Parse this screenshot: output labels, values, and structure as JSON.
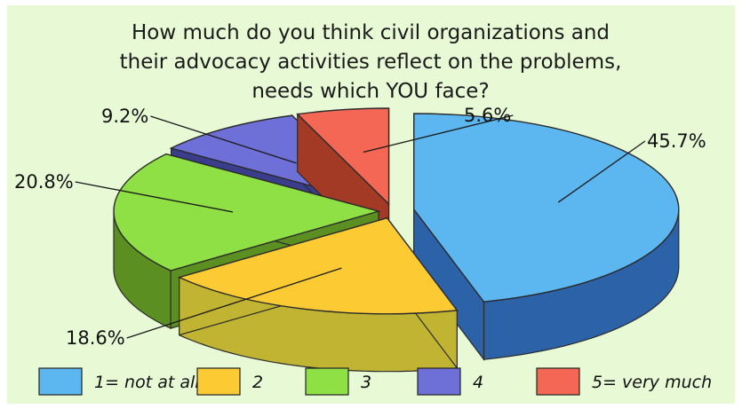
{
  "chart_data": {
    "type": "pie",
    "title_lines": [
      "How much do you think civil organizations and",
      "their advocacy activities reflect on the problems,",
      "needs which YOU face?"
    ],
    "categories": [
      "1= not at all",
      "2",
      "3",
      "4",
      "5= very much"
    ],
    "values": [
      45.7,
      18.6,
      20.8,
      9.2,
      5.6
    ],
    "labels": [
      "45.7%",
      "18.6%",
      "20.8%",
      "9.2%",
      "5.6%"
    ],
    "colors": [
      "#5cb6ef",
      "#fccb34",
      "#8fe044",
      "#6f6fd8",
      "#f46754"
    ],
    "side_colors": [
      "#2c62a8",
      "#c0b432",
      "#5c8f22",
      "#3a3d8c",
      "#a33a26"
    ],
    "legend_position": "bottom",
    "style": "3d-exploded"
  }
}
